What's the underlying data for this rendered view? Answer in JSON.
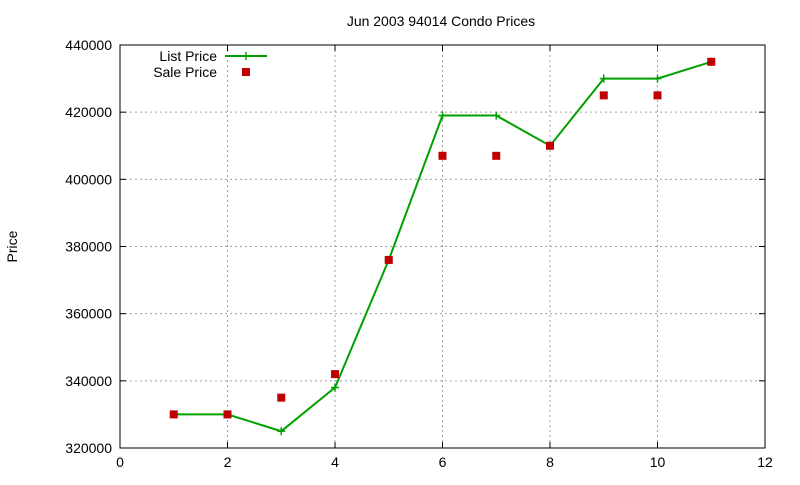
{
  "chart_data": {
    "type": "line",
    "title": "Jun 2003 94014 Condo Prices",
    "xlabel": "",
    "ylabel": "Price",
    "xlim": [
      0,
      12
    ],
    "ylim": [
      320000,
      440000
    ],
    "x_ticks": [
      0,
      2,
      4,
      6,
      8,
      10,
      12
    ],
    "y_ticks": [
      320000,
      340000,
      360000,
      380000,
      400000,
      420000,
      440000
    ],
    "grid": true,
    "legend_position": "top-left",
    "series": [
      {
        "name": "List Price",
        "style": "line-plus",
        "color": "#00a000",
        "x": [
          1,
          2,
          3,
          4,
          5,
          6,
          7,
          8,
          9,
          10,
          11
        ],
        "values": [
          330000,
          330000,
          325000,
          338000,
          376000,
          419000,
          419000,
          410000,
          430000,
          430000,
          435000
        ]
      },
      {
        "name": "Sale Price",
        "style": "square-marker",
        "color": "#c00000",
        "x": [
          1,
          2,
          3,
          4,
          5,
          6,
          7,
          8,
          9,
          10,
          11
        ],
        "values": [
          330000,
          330000,
          335000,
          342000,
          376000,
          407000,
          407000,
          410000,
          425000,
          425000,
          435000
        ]
      }
    ]
  }
}
